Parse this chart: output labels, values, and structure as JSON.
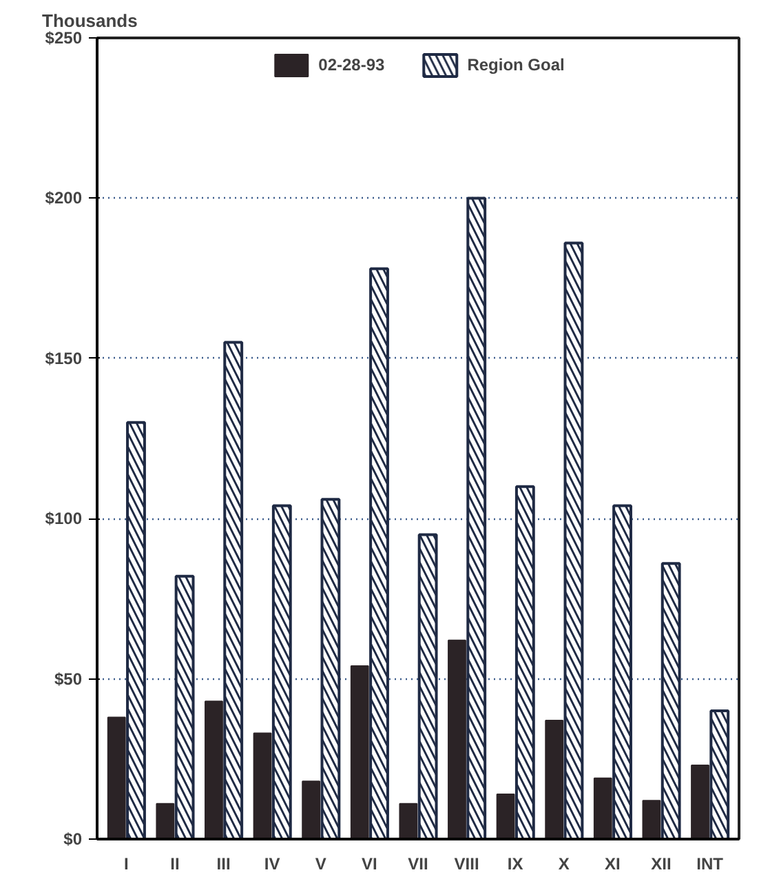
{
  "chart_data": {
    "type": "bar",
    "ylabel": "Thousands",
    "categories": [
      "I",
      "II",
      "III",
      "IV",
      "V",
      "VI",
      "VII",
      "VIII",
      "IX",
      "X",
      "XI",
      "XII",
      "INT"
    ],
    "series": [
      {
        "name": "02-28-93",
        "color": "#2b2326",
        "values": [
          38,
          11,
          43,
          33,
          18,
          54,
          11,
          62,
          14,
          37,
          19,
          12,
          23
        ]
      },
      {
        "name": "Region Goal",
        "color": "#1f2a44",
        "values": [
          130,
          82,
          155,
          104,
          106,
          178,
          95,
          200,
          110,
          186,
          104,
          86,
          40
        ]
      }
    ],
    "ylim": [
      0,
      250
    ],
    "yticks": [
      {
        "value": 0,
        "label": "$0"
      },
      {
        "value": 50,
        "label": "$50"
      },
      {
        "value": 100,
        "label": "$100"
      },
      {
        "value": 150,
        "label": "$150"
      },
      {
        "value": 200,
        "label": "$200"
      },
      {
        "value": 250,
        "label": "$250"
      }
    ],
    "grid": "y",
    "legend": "top"
  }
}
